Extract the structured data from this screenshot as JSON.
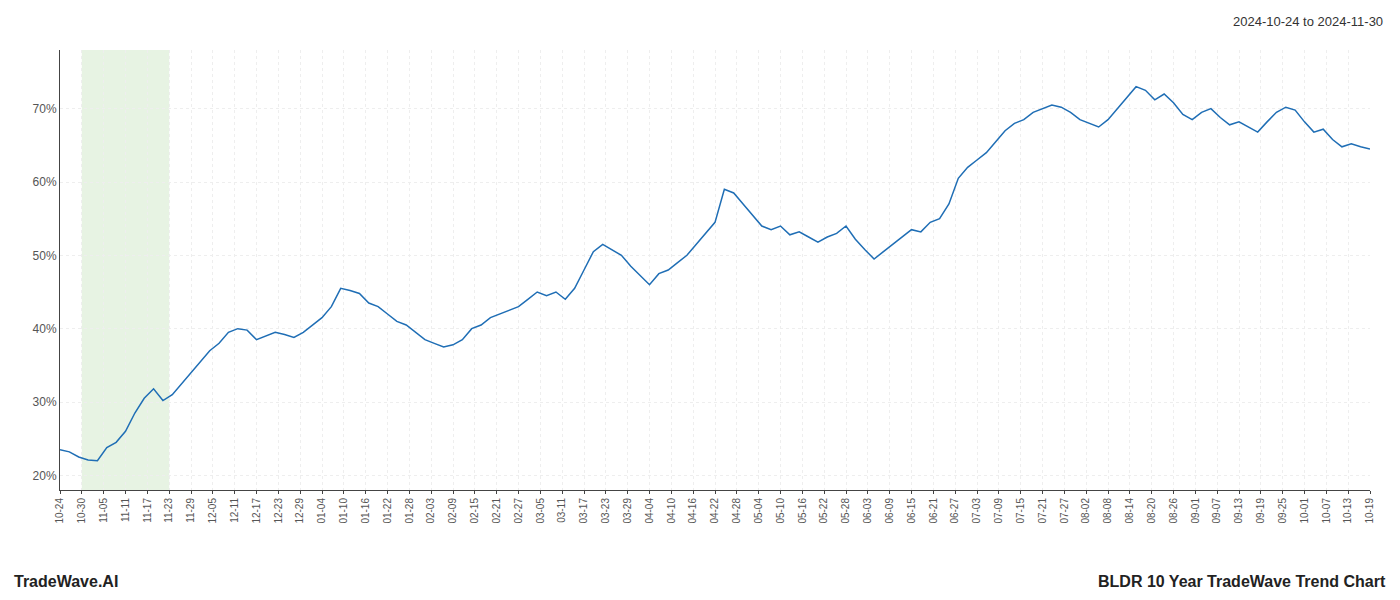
{
  "chart_data": {
    "type": "line",
    "title": "BLDR 10 Year TradeWave Trend Chart",
    "subtitle": "2024-10-24 to 2024-11-30",
    "annotations": [
      "TradeWave.AI"
    ],
    "color": "#1f6eb5",
    "grid": true,
    "shaded_range": {
      "start": "10-30",
      "end": "11-23",
      "color": "#d4eacc"
    },
    "xlim": [
      0,
      60
    ],
    "xticks": [
      {
        "value": 0,
        "label": "10-24"
      },
      {
        "value": 1,
        "label": "10-30"
      },
      {
        "value": 2,
        "label": "11-05"
      },
      {
        "value": 3,
        "label": "11-11"
      },
      {
        "value": 4,
        "label": "11-17"
      },
      {
        "value": 5,
        "label": "11-23"
      },
      {
        "value": 6,
        "label": "11-29"
      },
      {
        "value": 7,
        "label": "12-05"
      },
      {
        "value": 8,
        "label": "12-11"
      },
      {
        "value": 9,
        "label": "12-17"
      },
      {
        "value": 10,
        "label": "12-23"
      },
      {
        "value": 11,
        "label": "12-29"
      },
      {
        "value": 12,
        "label": "01-04"
      },
      {
        "value": 13,
        "label": "01-10"
      },
      {
        "value": 14,
        "label": "01-16"
      },
      {
        "value": 15,
        "label": "01-22"
      },
      {
        "value": 16,
        "label": "01-28"
      },
      {
        "value": 17,
        "label": "02-03"
      },
      {
        "value": 18,
        "label": "02-09"
      },
      {
        "value": 19,
        "label": "02-15"
      },
      {
        "value": 20,
        "label": "02-21"
      },
      {
        "value": 21,
        "label": "02-27"
      },
      {
        "value": 22,
        "label": "03-05"
      },
      {
        "value": 23,
        "label": "03-11"
      },
      {
        "value": 24,
        "label": "03-17"
      },
      {
        "value": 25,
        "label": "03-23"
      },
      {
        "value": 26,
        "label": "03-29"
      },
      {
        "value": 27,
        "label": "04-04"
      },
      {
        "value": 28,
        "label": "04-10"
      },
      {
        "value": 29,
        "label": "04-16"
      },
      {
        "value": 30,
        "label": "04-22"
      },
      {
        "value": 31,
        "label": "04-28"
      },
      {
        "value": 32,
        "label": "05-04"
      },
      {
        "value": 33,
        "label": "05-10"
      },
      {
        "value": 34,
        "label": "05-16"
      },
      {
        "value": 35,
        "label": "05-22"
      },
      {
        "value": 36,
        "label": "05-28"
      },
      {
        "value": 37,
        "label": "06-03"
      },
      {
        "value": 38,
        "label": "06-09"
      },
      {
        "value": 39,
        "label": "06-15"
      },
      {
        "value": 40,
        "label": "06-21"
      },
      {
        "value": 41,
        "label": "06-27"
      },
      {
        "value": 42,
        "label": "07-03"
      },
      {
        "value": 43,
        "label": "07-09"
      },
      {
        "value": 44,
        "label": "07-15"
      },
      {
        "value": 45,
        "label": "07-21"
      },
      {
        "value": 46,
        "label": "07-27"
      },
      {
        "value": 47,
        "label": "08-02"
      },
      {
        "value": 48,
        "label": "08-08"
      },
      {
        "value": 49,
        "label": "08-14"
      },
      {
        "value": 50,
        "label": "08-20"
      },
      {
        "value": 51,
        "label": "08-26"
      },
      {
        "value": 52,
        "label": "09-01"
      },
      {
        "value": 53,
        "label": "09-07"
      },
      {
        "value": 54,
        "label": "09-13"
      },
      {
        "value": 55,
        "label": "09-19"
      },
      {
        "value": 56,
        "label": "09-25"
      },
      {
        "value": 57,
        "label": "10-01"
      },
      {
        "value": 58,
        "label": "10-07"
      },
      {
        "value": 59,
        "label": "10-13"
      },
      {
        "value": 60,
        "label": "10-19"
      }
    ],
    "ylim": [
      18,
      78
    ],
    "yticks": [
      {
        "value": 20,
        "label": "20%"
      },
      {
        "value": 30,
        "label": "30%"
      },
      {
        "value": 40,
        "label": "40%"
      },
      {
        "value": 50,
        "label": "50%"
      },
      {
        "value": 60,
        "label": "60%"
      },
      {
        "value": 70,
        "label": "70%"
      }
    ],
    "values": [
      23.5,
      23.2,
      22.5,
      22.1,
      22.0,
      23.8,
      24.5,
      26.0,
      28.5,
      30.5,
      31.8,
      30.2,
      31.0,
      32.5,
      34.0,
      35.5,
      37.0,
      38.0,
      39.5,
      40.0,
      39.8,
      38.5,
      39.0,
      39.5,
      39.2,
      38.8,
      39.5,
      40.5,
      41.5,
      43.0,
      45.5,
      45.2,
      44.8,
      43.5,
      43.0,
      42.0,
      41.0,
      40.5,
      39.5,
      38.5,
      38.0,
      37.5,
      37.8,
      38.5,
      40.0,
      40.5,
      41.5,
      42.0,
      42.5,
      43.0,
      44.0,
      45.0,
      44.5,
      45.0,
      44.0,
      45.5,
      48.0,
      50.5,
      51.5,
      50.8,
      50.0,
      48.5,
      47.2,
      46.0,
      47.5,
      48.0,
      49.0,
      50.0,
      51.5,
      53.0,
      54.5,
      59.0,
      58.5,
      57.0,
      55.5,
      54.0,
      53.5,
      54.0,
      52.8,
      53.2,
      52.5,
      51.8,
      52.5,
      53.0,
      54.0,
      52.2,
      50.8,
      49.5,
      50.5,
      51.5,
      52.5,
      53.5,
      53.2,
      54.5,
      55.0,
      57.0,
      60.5,
      62.0,
      63.0,
      64.0,
      65.5,
      67.0,
      68.0,
      68.5,
      69.5,
      70.0,
      70.5,
      70.2,
      69.5,
      68.5,
      68.0,
      67.5,
      68.5,
      70.0,
      71.5,
      73.0,
      72.5,
      71.2,
      72.0,
      70.8,
      69.2,
      68.5,
      69.5,
      70.0,
      68.8,
      67.8,
      68.2,
      67.5,
      66.8,
      68.2,
      69.5,
      70.2,
      69.8,
      68.2,
      66.8,
      67.2,
      65.8,
      64.8,
      65.2,
      64.8,
      64.5
    ]
  }
}
